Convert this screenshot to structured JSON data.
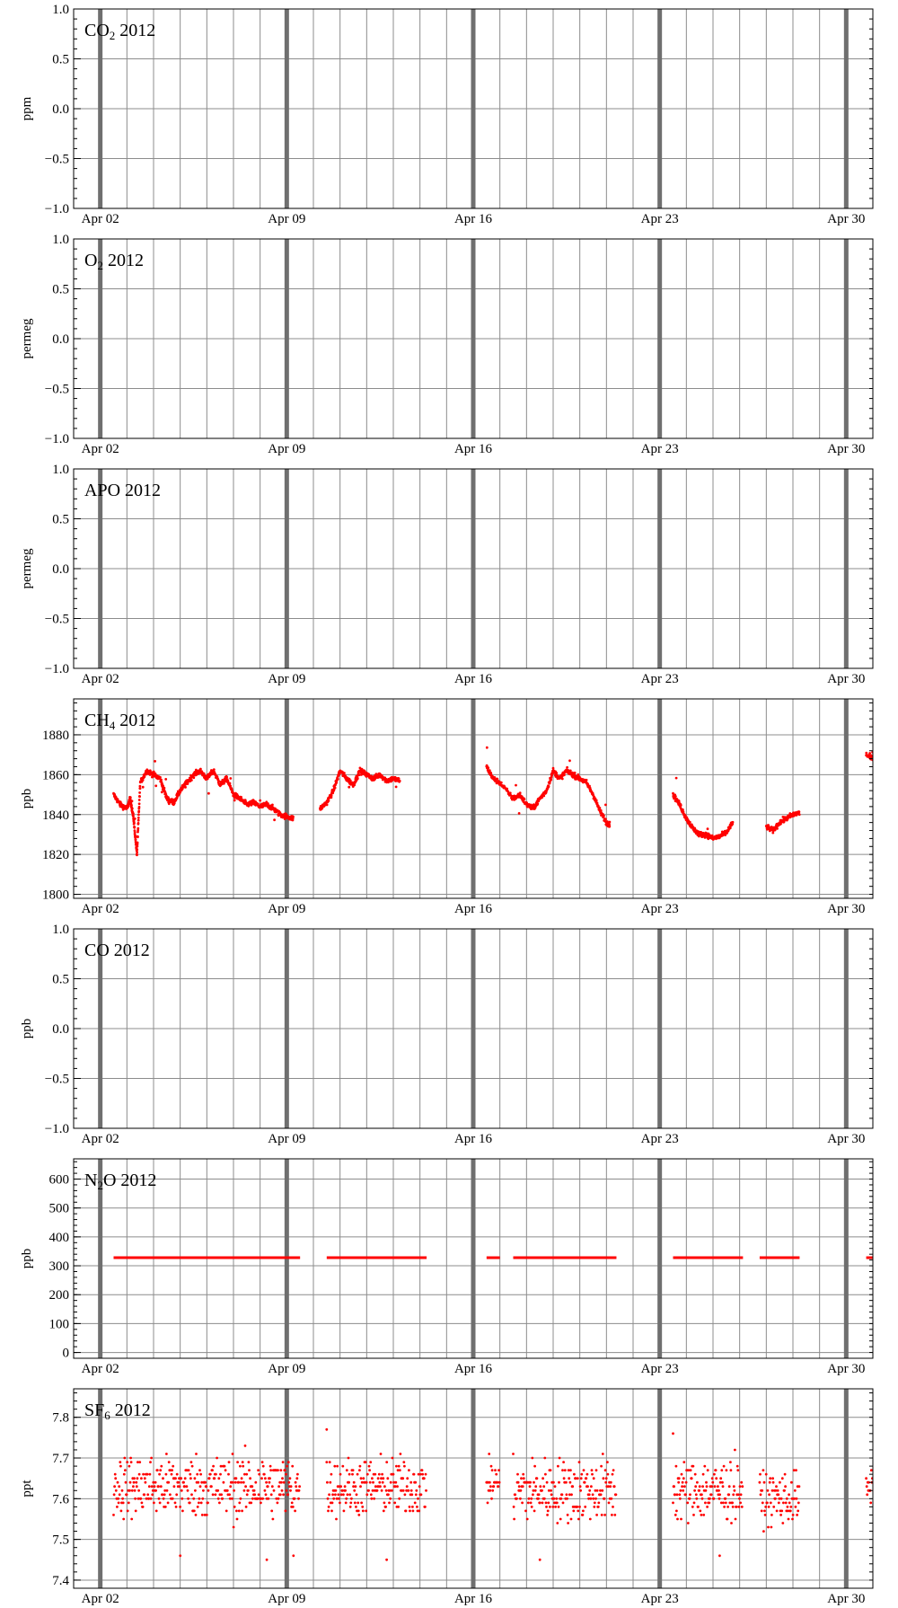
{
  "chart_data": [
    {
      "type": "scatter",
      "title": "CO2 2012",
      "title_base": "CO",
      "title_sub": "2",
      "title_rest": " 2012",
      "ylabel": "ppm",
      "xlim": [
        "2012-04-01",
        "2012-05-01"
      ],
      "ylim": [
        -1.0,
        1.0
      ],
      "yticks": [
        "−1.0",
        "−0.5",
        "0.0",
        "0.5",
        "1.0"
      ],
      "ytick_values": [
        -1.0,
        -0.5,
        0.0,
        0.5,
        1.0
      ],
      "xticks": [
        "Apr 02",
        "Apr 09",
        "Apr 16",
        "Apr 23",
        "Apr 30"
      ],
      "xtick_dates": [
        "2012-04-02",
        "2012-04-09",
        "2012-04-16",
        "2012-04-23",
        "2012-04-30"
      ],
      "grid": true,
      "series": []
    },
    {
      "type": "scatter",
      "title": "O2 2012",
      "title_base": "O",
      "title_sub": "2",
      "title_rest": " 2012",
      "ylabel": "permeg",
      "xlim": [
        "2012-04-01",
        "2012-05-01"
      ],
      "ylim": [
        -1.0,
        1.0
      ],
      "yticks": [
        "−1.0",
        "−0.5",
        "0.0",
        "0.5",
        "1.0"
      ],
      "ytick_values": [
        -1.0,
        -0.5,
        0.0,
        0.5,
        1.0
      ],
      "xticks": [
        "Apr 02",
        "Apr 09",
        "Apr 16",
        "Apr 23",
        "Apr 30"
      ],
      "xtick_dates": [
        "2012-04-02",
        "2012-04-09",
        "2012-04-16",
        "2012-04-23",
        "2012-04-30"
      ],
      "grid": true,
      "series": []
    },
    {
      "type": "scatter",
      "title": "APO 2012",
      "title_base": "APO",
      "title_sub": "",
      "title_rest": " 2012",
      "ylabel": "permeg",
      "xlim": [
        "2012-04-01",
        "2012-05-01"
      ],
      "ylim": [
        -1.0,
        1.0
      ],
      "yticks": [
        "−1.0",
        "−0.5",
        "0.0",
        "0.5",
        "1.0"
      ],
      "ytick_values": [
        -1.0,
        -0.5,
        0.0,
        0.5,
        1.0
      ],
      "xticks": [
        "Apr 02",
        "Apr 09",
        "Apr 16",
        "Apr 23",
        "Apr 30"
      ],
      "xtick_dates": [
        "2012-04-02",
        "2012-04-09",
        "2012-04-16",
        "2012-04-23",
        "2012-04-30"
      ],
      "grid": true,
      "series": []
    },
    {
      "type": "scatter",
      "title": "CH4 2012",
      "title_base": "CH",
      "title_sub": "4",
      "title_rest": " 2012",
      "ylabel": "ppb",
      "xlim": [
        "2012-04-01",
        "2012-05-01"
      ],
      "ylim": [
        1798,
        1898
      ],
      "yticks": [
        "1800",
        "1820",
        "1840",
        "1860",
        "1880"
      ],
      "ytick_values": [
        1800,
        1820,
        1840,
        1860,
        1880
      ],
      "xticks": [
        "Apr 02",
        "Apr 09",
        "Apr 16",
        "Apr 23",
        "Apr 30"
      ],
      "xtick_dates": [
        "2012-04-02",
        "2012-04-09",
        "2012-04-16",
        "2012-04-23",
        "2012-04-30"
      ],
      "grid": true,
      "series": [
        {
          "color": "#ff0000",
          "marker": "dot",
          "points": [
            [
              "2012-04-02 12:00",
              1850
            ],
            [
              "2012-04-02 18:00",
              1845
            ],
            [
              "2012-04-03 00:00",
              1843
            ],
            [
              "2012-04-03 03:00",
              1848
            ],
            [
              "2012-04-03 06:00",
              1838
            ],
            [
              "2012-04-03 09:00",
              1820
            ],
            [
              "2012-04-03 12:00",
              1856
            ],
            [
              "2012-04-03 18:00",
              1862
            ],
            [
              "2012-04-04 00:00",
              1860
            ],
            [
              "2012-04-04 06:00",
              1858
            ],
            [
              "2012-04-04 12:00",
              1848
            ],
            [
              "2012-04-04 18:00",
              1846
            ],
            [
              "2012-04-05 00:00",
              1852
            ],
            [
              "2012-04-05 06:00",
              1856
            ],
            [
              "2012-04-05 12:00",
              1860
            ],
            [
              "2012-04-05 18:00",
              1862
            ],
            [
              "2012-04-06 00:00",
              1858
            ],
            [
              "2012-04-06 06:00",
              1862
            ],
            [
              "2012-04-06 12:00",
              1855
            ],
            [
              "2012-04-06 18:00",
              1858
            ],
            [
              "2012-04-07 00:00",
              1850
            ],
            [
              "2012-04-07 06:00",
              1848
            ],
            [
              "2012-04-07 12:00",
              1845
            ],
            [
              "2012-04-07 18:00",
              1846
            ],
            [
              "2012-04-08 00:00",
              1844
            ],
            [
              "2012-04-08 06:00",
              1845
            ],
            [
              "2012-04-08 12:00",
              1843
            ],
            [
              "2012-04-08 18:00",
              1840
            ],
            [
              "2012-04-09 00:00",
              1839
            ],
            [
              "2012-04-09 06:00",
              1838
            ],
            [
              "2012-04-10 06:00",
              1843
            ],
            [
              "2012-04-10 12:00",
              1846
            ],
            [
              "2012-04-10 18:00",
              1852
            ],
            [
              "2012-04-11 00:00",
              1862
            ],
            [
              "2012-04-11 06:00",
              1858
            ],
            [
              "2012-04-11 12:00",
              1855
            ],
            [
              "2012-04-11 18:00",
              1862
            ],
            [
              "2012-04-12 00:00",
              1860
            ],
            [
              "2012-04-12 06:00",
              1858
            ],
            [
              "2012-04-12 12:00",
              1860
            ],
            [
              "2012-04-12 18:00",
              1857
            ],
            [
              "2012-04-13 00:00",
              1858
            ],
            [
              "2012-04-13 06:00",
              1857
            ],
            [
              "2012-04-16 12:00",
              1864
            ],
            [
              "2012-04-16 18:00",
              1858
            ],
            [
              "2012-04-17 00:00",
              1856
            ],
            [
              "2012-04-17 12:00",
              1848
            ],
            [
              "2012-04-17 18:00",
              1850
            ],
            [
              "2012-04-18 00:00",
              1845
            ],
            [
              "2012-04-18 06:00",
              1843
            ],
            [
              "2012-04-18 12:00",
              1848
            ],
            [
              "2012-04-18 18:00",
              1852
            ],
            [
              "2012-04-19 00:00",
              1862
            ],
            [
              "2012-04-19 06:00",
              1858
            ],
            [
              "2012-04-19 12:00",
              1862
            ],
            [
              "2012-04-19 18:00",
              1860
            ],
            [
              "2012-04-20 00:00",
              1858
            ],
            [
              "2012-04-20 06:00",
              1856
            ],
            [
              "2012-04-20 12:00",
              1850
            ],
            [
              "2012-04-20 18:00",
              1842
            ],
            [
              "2012-04-21 00:00",
              1836
            ],
            [
              "2012-04-21 03:00",
              1835
            ],
            [
              "2012-04-23 12:00",
              1850
            ],
            [
              "2012-04-23 18:00",
              1845
            ],
            [
              "2012-04-24 00:00",
              1838
            ],
            [
              "2012-04-24 06:00",
              1833
            ],
            [
              "2012-04-24 12:00",
              1830
            ],
            [
              "2012-04-24 18:00",
              1830
            ],
            [
              "2012-04-25 00:00",
              1828
            ],
            [
              "2012-04-25 06:00",
              1829
            ],
            [
              "2012-04-25 12:00",
              1831
            ],
            [
              "2012-04-25 18:00",
              1836
            ],
            [
              "2012-04-27 00:00",
              1834
            ],
            [
              "2012-04-27 06:00",
              1832
            ],
            [
              "2012-04-27 12:00",
              1836
            ],
            [
              "2012-04-27 18:00",
              1838
            ],
            [
              "2012-04-28 00:00",
              1840
            ],
            [
              "2012-04-28 06:00",
              1841
            ],
            [
              "2012-04-30 18:00",
              1870
            ],
            [
              "2012-05-01 00:00",
              1868
            ]
          ]
        }
      ]
    },
    {
      "type": "scatter",
      "title": "CO 2012",
      "title_base": "CO",
      "title_sub": "",
      "title_rest": " 2012",
      "ylabel": "ppb",
      "xlim": [
        "2012-04-01",
        "2012-05-01"
      ],
      "ylim": [
        -1.0,
        1.0
      ],
      "yticks": [
        "−1.0",
        "−0.5",
        "0.0",
        "0.5",
        "1.0"
      ],
      "ytick_values": [
        -1.0,
        -0.5,
        0.0,
        0.5,
        1.0
      ],
      "xticks": [
        "Apr 02",
        "Apr 09",
        "Apr 16",
        "Apr 23",
        "Apr 30"
      ],
      "xtick_dates": [
        "2012-04-02",
        "2012-04-09",
        "2012-04-16",
        "2012-04-23",
        "2012-04-30"
      ],
      "grid": true,
      "series": []
    },
    {
      "type": "scatter",
      "title": "N2O 2012",
      "title_base": "N",
      "title_sub": "2",
      "title_rest": "O 2012",
      "ylabel": "ppb",
      "xlim": [
        "2012-04-01",
        "2012-05-01"
      ],
      "ylim": [
        -20,
        670
      ],
      "yticks": [
        "0",
        "100",
        "200",
        "300",
        "400",
        "500",
        "600"
      ],
      "ytick_values": [
        0,
        100,
        200,
        300,
        400,
        500,
        600
      ],
      "xticks": [
        "Apr 02",
        "Apr 09",
        "Apr 16",
        "Apr 23",
        "Apr 30"
      ],
      "xtick_dates": [
        "2012-04-02",
        "2012-04-09",
        "2012-04-16",
        "2012-04-23",
        "2012-04-30"
      ],
      "grid": true,
      "series": [
        {
          "color": "#ff0000",
          "marker": "line",
          "segments": [
            [
              [
                "2012-04-02 12:00",
                328
              ],
              [
                "2012-04-09 12:00",
                328
              ]
            ],
            [
              [
                "2012-04-10 12:00",
                328
              ],
              [
                "2012-04-14 06:00",
                328
              ]
            ],
            [
              [
                "2012-04-16 12:00",
                328
              ],
              [
                "2012-04-17 00:00",
                328
              ]
            ],
            [
              [
                "2012-04-17 12:00",
                328
              ],
              [
                "2012-04-21 09:00",
                328
              ]
            ],
            [
              [
                "2012-04-23 12:00",
                328
              ],
              [
                "2012-04-26 03:00",
                328
              ]
            ],
            [
              [
                "2012-04-26 18:00",
                328
              ],
              [
                "2012-04-28 06:00",
                328
              ]
            ],
            [
              [
                "2012-04-30 18:00",
                328
              ],
              [
                "2012-05-01 00:00",
                328
              ]
            ]
          ]
        }
      ]
    },
    {
      "type": "scatter",
      "title": "SF6 2012",
      "title_base": "SF",
      "title_sub": "6",
      "title_rest": " 2012",
      "ylabel": "ppt",
      "xlim": [
        "2012-04-01",
        "2012-05-01"
      ],
      "ylim": [
        7.38,
        7.87
      ],
      "yticks": [
        "7.4",
        "7.5",
        "7.6",
        "7.7",
        "7.8"
      ],
      "ytick_values": [
        7.4,
        7.5,
        7.6,
        7.7,
        7.8
      ],
      "xticks": [
        "Apr 02",
        "Apr 09",
        "Apr 16",
        "Apr 23",
        "Apr 30"
      ],
      "xtick_dates": [
        "2012-04-02",
        "2012-04-09",
        "2012-04-16",
        "2012-04-23",
        "2012-04-30"
      ],
      "grid": true,
      "series": [
        {
          "color": "#ff0000",
          "marker": "dot",
          "bands": [
            {
              "x": [
                "2012-04-02 12:00",
                "2012-04-09 12:00"
              ],
              "y": [
                7.5,
                7.74
              ],
              "center": 7.63
            },
            {
              "x": [
                "2012-04-10 12:00",
                "2012-04-14 06:00"
              ],
              "y": [
                7.51,
                7.73
              ],
              "center": 7.63
            },
            {
              "x": [
                "2012-04-16 12:00",
                "2012-04-17 00:00"
              ],
              "y": [
                7.56,
                7.72
              ],
              "center": 7.64
            },
            {
              "x": [
                "2012-04-17 12:00",
                "2012-04-21 09:00"
              ],
              "y": [
                7.5,
                7.74
              ],
              "center": 7.62
            },
            {
              "x": [
                "2012-04-23 12:00",
                "2012-04-26 03:00"
              ],
              "y": [
                7.5,
                7.74
              ],
              "center": 7.62
            },
            {
              "x": [
                "2012-04-26 18:00",
                "2012-04-28 06:00"
              ],
              "y": [
                7.52,
                7.72
              ],
              "center": 7.6
            },
            {
              "x": [
                "2012-04-30 18:00",
                "2012-05-01 00:00"
              ],
              "y": [
                7.56,
                7.68
              ],
              "center": 7.62
            }
          ],
          "outliers": [
            [
              "2012-04-10 12:00",
              7.77
            ],
            [
              "2012-04-05 00:00",
              7.46
            ],
            [
              "2012-04-08 06:00",
              7.45
            ],
            [
              "2012-04-09 06:00",
              7.46
            ],
            [
              "2012-04-12 18:00",
              7.45
            ],
            [
              "2012-04-18 12:00",
              7.45
            ],
            [
              "2012-04-25 06:00",
              7.46
            ],
            [
              "2012-04-23 12:00",
              7.76
            ]
          ]
        }
      ]
    }
  ]
}
